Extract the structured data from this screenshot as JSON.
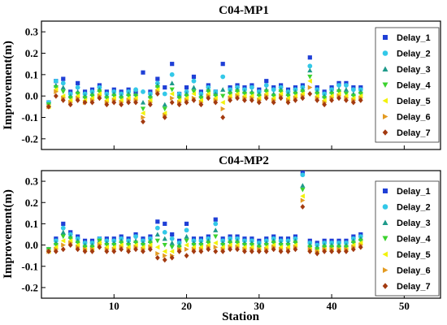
{
  "xlabel": "Station",
  "ylabel": "Improvement(m)",
  "series_styles": [
    {
      "name": "Delay_1",
      "color": "#1f3fd6",
      "marker": "square"
    },
    {
      "name": "Delay_2",
      "color": "#33c8e8",
      "marker": "circle"
    },
    {
      "name": "Delay_3",
      "color": "#1e9a8a",
      "marker": "triangle-up"
    },
    {
      "name": "Delay_4",
      "color": "#3bd22e",
      "marker": "triangle-down"
    },
    {
      "name": "Delay_5",
      "color": "#f2f20a",
      "marker": "triangle-left"
    },
    {
      "name": "Delay_6",
      "color": "#e39b22",
      "marker": "triangle-right"
    },
    {
      "name": "Delay_7",
      "color": "#a33a10",
      "marker": "diamond"
    }
  ],
  "chart_data": [
    {
      "type": "scatter",
      "title": "C04-MP1",
      "xlim": [
        0,
        55
      ],
      "ylim": [
        -0.25,
        0.35
      ],
      "xticks": [
        10,
        20,
        30,
        40,
        50
      ],
      "yticks": [
        -0.2,
        -0.1,
        0.0,
        0.1,
        0.2,
        0.3
      ],
      "ytick_labels": [
        "-0.2",
        "-0.1",
        "0.0",
        "0.1",
        "0.2",
        "0.3"
      ],
      "xtick_labels": [
        "",
        "",
        "",
        "",
        ""
      ],
      "legend": "top-right",
      "x": [
        1,
        2,
        3,
        4,
        5,
        6,
        7,
        8,
        9,
        10,
        11,
        12,
        13,
        14,
        15,
        16,
        17,
        18,
        19,
        20,
        21,
        22,
        23,
        24,
        25,
        26,
        27,
        28,
        29,
        30,
        31,
        32,
        33,
        34,
        35,
        36,
        37,
        38,
        39,
        40,
        41,
        42,
        43,
        44
      ],
      "series": [
        {
          "name": "Delay_1",
          "values": [
            -0.03,
            0.07,
            0.08,
            0.02,
            0.06,
            0.02,
            0.03,
            0.05,
            0.02,
            0.03,
            0.02,
            0.03,
            0.02,
            0.11,
            0.02,
            0.08,
            0.04,
            0.15,
            0.01,
            0.04,
            0.09,
            0.02,
            0.05,
            0.02,
            0.15,
            0.04,
            0.05,
            0.04,
            0.05,
            0.03,
            0.07,
            0.04,
            0.05,
            0.03,
            0.04,
            0.05,
            0.18,
            0.04,
            0.02,
            0.04,
            0.06,
            0.06,
            0.04,
            0.04
          ]
        },
        {
          "name": "Delay_2",
          "values": [
            -0.03,
            0.07,
            0.06,
            0.01,
            0.04,
            0.01,
            0.02,
            0.04,
            0.01,
            0.02,
            0.01,
            0.02,
            0.03,
            0.02,
            0.01,
            0.06,
            0.01,
            0.1,
            0.01,
            0.02,
            0.07,
            0.01,
            0.04,
            0.02,
            0.09,
            0.03,
            0.04,
            0.03,
            0.04,
            0.02,
            0.05,
            0.03,
            0.04,
            0.02,
            0.03,
            0.04,
            0.14,
            0.03,
            0.01,
            0.03,
            0.05,
            0.05,
            0.03,
            0.03
          ]
        },
        {
          "name": "Delay_3",
          "values": [
            -0.04,
            0.05,
            0.04,
            0.0,
            0.02,
            0.0,
            0.01,
            0.03,
            0.0,
            0.01,
            0.0,
            0.01,
            0.01,
            -0.03,
            0.0,
            0.05,
            -0.04,
            0.06,
            0.0,
            0.01,
            0.04,
            0.0,
            0.03,
            0.01,
            0.03,
            0.02,
            0.03,
            0.02,
            0.02,
            0.01,
            0.03,
            0.01,
            0.03,
            0.01,
            0.02,
            0.03,
            0.12,
            0.02,
            0.0,
            0.02,
            0.03,
            0.03,
            0.01,
            0.02
          ]
        },
        {
          "name": "Delay_4",
          "values": [
            -0.04,
            0.04,
            0.02,
            -0.01,
            0.01,
            -0.01,
            0.0,
            0.02,
            -0.01,
            0.0,
            -0.01,
            0.0,
            0.0,
            -0.06,
            -0.01,
            0.04,
            -0.06,
            0.03,
            -0.01,
            0.0,
            0.02,
            -0.01,
            0.02,
            0.0,
            0.0,
            0.01,
            0.02,
            0.01,
            0.01,
            0.0,
            0.02,
            0.0,
            0.02,
            0.0,
            0.01,
            0.02,
            0.09,
            0.01,
            -0.01,
            0.01,
            0.02,
            0.01,
            0.0,
            0.01
          ]
        },
        {
          "name": "Delay_5",
          "values": [
            -0.05,
            0.03,
            0.0,
            -0.02,
            0.0,
            -0.02,
            -0.01,
            0.01,
            -0.02,
            -0.01,
            -0.02,
            -0.01,
            -0.01,
            -0.08,
            -0.02,
            0.03,
            -0.08,
            0.01,
            -0.02,
            -0.01,
            0.01,
            -0.02,
            0.01,
            -0.01,
            -0.03,
            0.0,
            0.01,
            0.0,
            0.0,
            -0.01,
            0.01,
            -0.01,
            0.01,
            -0.01,
            0.0,
            0.01,
            0.07,
            0.0,
            -0.02,
            0.0,
            0.01,
            0.0,
            -0.01,
            0.0
          ]
        },
        {
          "name": "Delay_6",
          "values": [
            -0.05,
            0.02,
            -0.01,
            -0.03,
            -0.01,
            -0.03,
            -0.02,
            0.0,
            -0.03,
            -0.02,
            -0.03,
            -0.02,
            -0.02,
            -0.1,
            -0.03,
            0.02,
            -0.09,
            -0.01,
            -0.03,
            -0.02,
            -0.01,
            -0.03,
            0.0,
            -0.02,
            -0.06,
            -0.01,
            0.0,
            -0.01,
            -0.01,
            -0.02,
            0.0,
            -0.02,
            0.0,
            -0.02,
            -0.01,
            0.0,
            0.04,
            -0.01,
            -0.03,
            -0.01,
            0.0,
            -0.01,
            -0.02,
            -0.01
          ]
        },
        {
          "name": "Delay_7",
          "values": [
            -0.05,
            0.0,
            -0.02,
            -0.04,
            -0.02,
            -0.03,
            -0.03,
            -0.01,
            -0.04,
            -0.03,
            -0.04,
            -0.03,
            -0.03,
            -0.12,
            -0.04,
            0.01,
            -0.1,
            -0.03,
            -0.04,
            -0.03,
            -0.02,
            -0.04,
            -0.01,
            -0.03,
            -0.1,
            -0.02,
            -0.01,
            -0.02,
            -0.02,
            -0.03,
            -0.01,
            -0.03,
            -0.01,
            -0.03,
            -0.02,
            -0.01,
            0.01,
            -0.02,
            -0.04,
            -0.02,
            -0.01,
            -0.02,
            -0.03,
            -0.02
          ]
        }
      ]
    },
    {
      "type": "scatter",
      "title": "C04-MP2",
      "xlim": [
        0,
        55
      ],
      "ylim": [
        -0.25,
        0.35
      ],
      "xticks": [
        10,
        20,
        30,
        40,
        50
      ],
      "yticks": [
        -0.2,
        -0.1,
        0.0,
        0.1,
        0.2,
        0.3
      ],
      "ytick_labels": [
        "-0.2",
        "-0.1",
        "0.0",
        "0.1",
        "0.2",
        "0.3"
      ],
      "xtick_labels": [
        "10",
        "20",
        "30",
        "40",
        "50"
      ],
      "legend": "bottom-right",
      "x": [
        1,
        2,
        3,
        4,
        5,
        6,
        7,
        8,
        9,
        10,
        11,
        12,
        13,
        14,
        15,
        16,
        17,
        18,
        19,
        20,
        21,
        22,
        23,
        24,
        25,
        26,
        27,
        28,
        29,
        30,
        31,
        32,
        33,
        34,
        35,
        36,
        37,
        38,
        39,
        40,
        41,
        42,
        43,
        44
      ],
      "series": [
        {
          "name": "Delay_1",
          "values": [
            -0.02,
            0.03,
            0.1,
            0.06,
            0.04,
            0.02,
            0.02,
            0.03,
            0.03,
            0.03,
            0.04,
            0.03,
            0.05,
            0.03,
            0.04,
            0.11,
            0.1,
            0.05,
            0.02,
            0.1,
            0.03,
            0.03,
            0.04,
            0.12,
            0.03,
            0.04,
            0.04,
            0.03,
            0.03,
            0.02,
            0.03,
            0.04,
            0.03,
            0.03,
            0.04,
            0.34,
            0.02,
            0.01,
            0.02,
            0.02,
            0.02,
            0.02,
            0.04,
            0.05
          ]
        },
        {
          "name": "Delay_2",
          "values": [
            -0.02,
            0.02,
            0.08,
            0.05,
            0.03,
            0.01,
            0.01,
            0.03,
            0.02,
            0.02,
            0.03,
            0.02,
            0.04,
            0.02,
            0.03,
            0.08,
            0.06,
            0.03,
            0.01,
            0.07,
            0.02,
            0.02,
            0.03,
            0.1,
            0.02,
            0.03,
            0.03,
            0.02,
            0.02,
            0.01,
            0.02,
            0.03,
            0.02,
            0.02,
            0.03,
            0.33,
            0.01,
            0.0,
            0.01,
            0.01,
            0.01,
            0.01,
            0.03,
            0.04
          ]
        },
        {
          "name": "Delay_3",
          "values": [
            -0.02,
            0.01,
            0.06,
            0.04,
            0.02,
            0.0,
            0.0,
            0.02,
            0.01,
            0.01,
            0.02,
            0.01,
            0.02,
            0.01,
            0.02,
            0.05,
            0.03,
            0.01,
            0.0,
            0.04,
            0.01,
            0.01,
            0.02,
            0.07,
            0.01,
            0.02,
            0.02,
            0.01,
            0.01,
            0.0,
            0.01,
            0.02,
            0.01,
            0.01,
            0.02,
            0.28,
            0.0,
            -0.01,
            0.0,
            0.0,
            0.0,
            0.0,
            0.02,
            0.03
          ]
        },
        {
          "name": "Delay_4",
          "values": [
            -0.02,
            0.0,
            0.04,
            0.03,
            0.01,
            -0.01,
            -0.01,
            0.02,
            0.0,
            0.0,
            0.01,
            0.0,
            0.01,
            0.0,
            0.01,
            0.02,
            0.0,
            -0.01,
            -0.01,
            0.02,
            0.0,
            0.0,
            0.01,
            0.04,
            0.0,
            0.01,
            0.01,
            0.0,
            0.0,
            -0.01,
            0.0,
            0.01,
            0.0,
            0.0,
            0.01,
            0.26,
            -0.01,
            -0.02,
            -0.01,
            -0.01,
            -0.01,
            -0.01,
            0.01,
            0.02
          ]
        },
        {
          "name": "Delay_5",
          "values": [
            -0.03,
            -0.01,
            0.02,
            0.02,
            0.0,
            -0.02,
            -0.02,
            0.01,
            -0.01,
            -0.01,
            0.0,
            -0.01,
            0.0,
            -0.01,
            0.0,
            -0.01,
            -0.03,
            -0.03,
            -0.02,
            0.0,
            -0.01,
            -0.01,
            0.0,
            0.01,
            -0.01,
            0.0,
            0.0,
            -0.01,
            -0.01,
            -0.02,
            -0.01,
            0.0,
            -0.01,
            -0.01,
            0.0,
            0.23,
            -0.02,
            -0.03,
            -0.02,
            -0.02,
            -0.02,
            -0.02,
            0.0,
            0.01
          ]
        },
        {
          "name": "Delay_6",
          "values": [
            -0.03,
            -0.02,
            0.0,
            0.01,
            -0.01,
            -0.02,
            -0.02,
            0.0,
            -0.02,
            -0.02,
            -0.01,
            -0.02,
            -0.01,
            -0.02,
            -0.01,
            -0.04,
            -0.05,
            -0.05,
            -0.02,
            -0.02,
            -0.02,
            -0.02,
            -0.01,
            -0.01,
            -0.02,
            -0.01,
            -0.01,
            -0.02,
            -0.02,
            -0.02,
            -0.02,
            -0.01,
            -0.02,
            -0.02,
            -0.01,
            0.21,
            -0.02,
            -0.03,
            -0.02,
            -0.02,
            -0.02,
            -0.02,
            -0.01,
            0.0
          ]
        },
        {
          "name": "Delay_7",
          "values": [
            -0.03,
            -0.03,
            -0.02,
            0.0,
            -0.02,
            -0.03,
            -0.03,
            -0.01,
            -0.03,
            -0.03,
            -0.02,
            -0.03,
            -0.02,
            -0.03,
            -0.02,
            -0.06,
            -0.07,
            -0.06,
            -0.03,
            -0.05,
            -0.03,
            -0.03,
            -0.02,
            -0.03,
            -0.03,
            -0.02,
            -0.02,
            -0.03,
            -0.03,
            -0.03,
            -0.03,
            -0.02,
            -0.03,
            -0.03,
            -0.02,
            0.18,
            -0.03,
            -0.04,
            -0.03,
            -0.03,
            -0.03,
            -0.03,
            -0.02,
            -0.01
          ]
        }
      ]
    }
  ]
}
